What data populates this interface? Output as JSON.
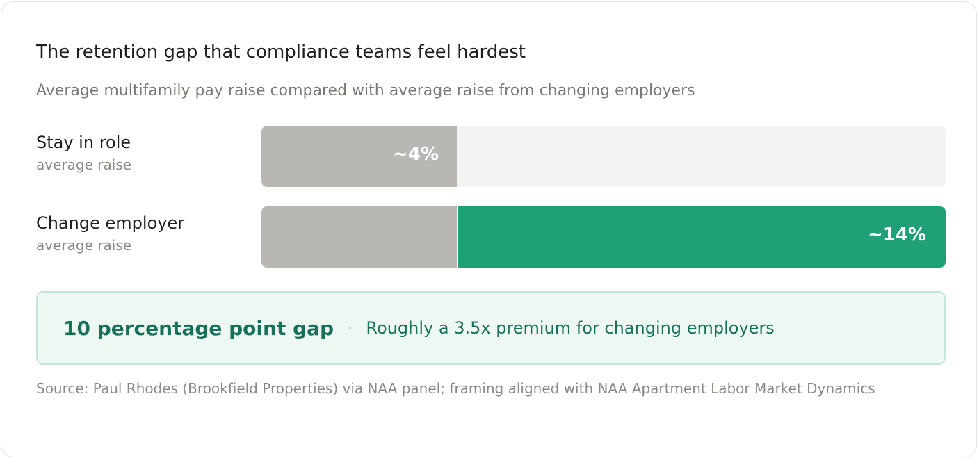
{
  "title": "The retention gap that compliance teams feel hardest",
  "subtitle": "Average multifamily pay raise compared with average raise from changing employers",
  "chart_data": {
    "type": "bar",
    "orientation": "horizontal",
    "xlim": [
      0,
      14
    ],
    "categories": [
      "Stay in role",
      "Change employer"
    ],
    "category_sublabels": [
      "average raise",
      "average raise"
    ],
    "values": [
      4,
      14
    ],
    "value_labels": [
      "~4%",
      "~14%"
    ],
    "unit": "%",
    "grid": false,
    "colors": {
      "base": "#b8b7b3",
      "premium": "#1fa077",
      "track": "#f3f3f1"
    }
  },
  "callout": {
    "headline": "10 percentage point gap",
    "separator": "·",
    "detail": "Roughly a 3.5x premium for changing employers"
  },
  "source": "Source: Paul Rhodes (Brookfield Properties) via NAA panel; framing aligned with NAA Apartment Labor Market Dynamics"
}
